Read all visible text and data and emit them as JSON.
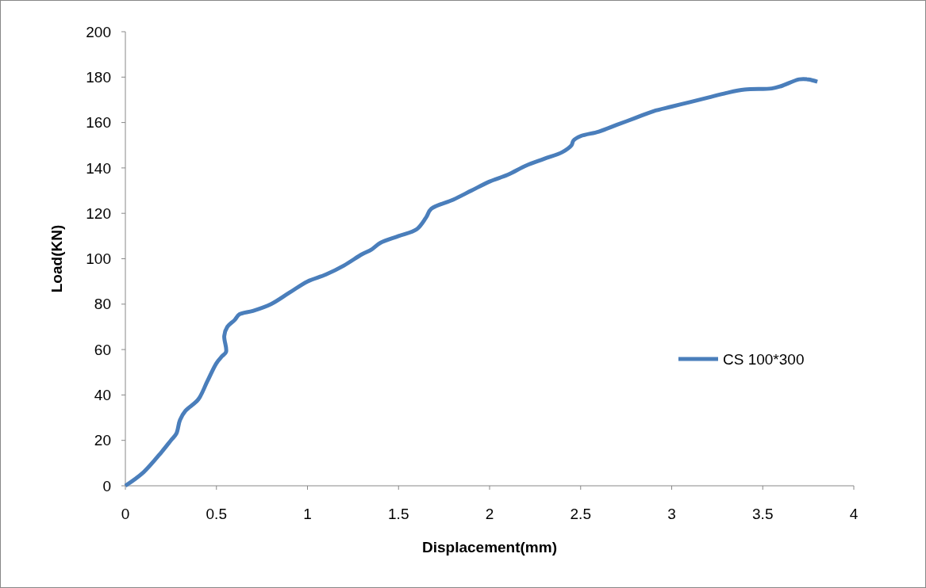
{
  "chart_data": {
    "type": "line",
    "xlabel": "Displacement(mm)",
    "ylabel": "Load(KN)",
    "xlim": [
      0,
      4
    ],
    "xticks": [
      0,
      {
        "value": 0.5,
        "label": "0.5"
      },
      1,
      {
        "value": 1.5,
        "label": "1.5"
      },
      2,
      {
        "value": 2.5,
        "label": "2.5"
      },
      3,
      {
        "value": 3.5,
        "label": "3.5"
      },
      4
    ],
    "ylim": [
      0,
      200
    ],
    "yticks": [
      0,
      20,
      40,
      60,
      80,
      100,
      120,
      140,
      160,
      180,
      200
    ],
    "grid": false,
    "legend": "right",
    "marker": "none",
    "line_style": "solid",
    "series": [
      {
        "name": "CS 100*300",
        "color": "#4a7ebb",
        "x": [
          0,
          0.1,
          0.2,
          0.25,
          0.28,
          0.3,
          0.33,
          0.4,
          0.45,
          0.5,
          0.53,
          0.553,
          0.543,
          0.56,
          0.6,
          0.626,
          0.7,
          0.8,
          0.9,
          1.0,
          1.1,
          1.2,
          1.3,
          1.35,
          1.4,
          1.5,
          1.6,
          1.65,
          1.68,
          1.8,
          1.9,
          2.0,
          2.1,
          2.2,
          2.3,
          2.4,
          2.45,
          2.46,
          2.5,
          2.6,
          2.7,
          2.8,
          2.9,
          3.0,
          3.1,
          3.2,
          3.3,
          3.4,
          3.55,
          3.6,
          3.7,
          3.75,
          3.8
        ],
        "values": [
          0,
          6,
          15,
          20,
          23,
          29,
          33,
          38,
          46,
          54,
          57,
          59,
          66,
          70,
          73,
          75.5,
          77,
          80,
          85,
          90,
          93,
          97,
          102,
          104,
          107,
          110,
          113,
          118,
          122,
          126,
          130,
          134,
          137,
          141,
          144,
          147,
          150,
          152,
          154,
          156,
          159,
          162,
          165,
          167,
          169,
          171,
          173,
          174.5,
          175,
          176,
          179,
          179,
          178
        ]
      }
    ]
  }
}
